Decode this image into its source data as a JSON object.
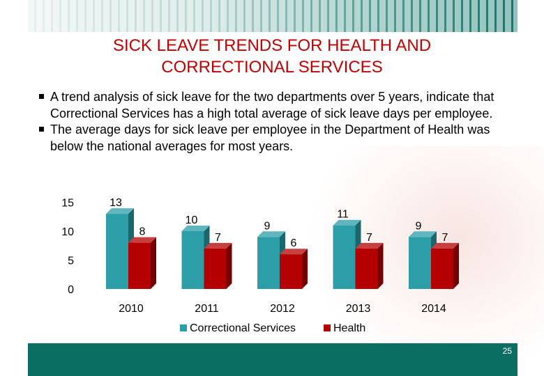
{
  "slide": {
    "title_line1": "SICK LEAVE TRENDS FOR HEALTH AND",
    "title_line2": "CORRECTIONAL SERVICES",
    "bullets": [
      "A trend analysis of sick leave for the two departments over 5 years, indicate that Correctional Services has a high total average of sick leave days per employee.",
      "The average days for sick leave per employee in the Department of Health was below the national averages for most years."
    ],
    "page_number": "25"
  },
  "colors": {
    "title": "#c00000",
    "footer": "#0b6e62",
    "series_corr": "#2b9ea8",
    "series_health": "#b40000"
  },
  "chart_data": {
    "type": "bar",
    "categories": [
      "2010",
      "2011",
      "2012",
      "2013",
      "2014"
    ],
    "series": [
      {
        "name": "Correctional Services",
        "values": [
          13,
          10,
          9,
          11,
          9
        ],
        "color": "#2b9ea8"
      },
      {
        "name": "Health",
        "values": [
          8,
          7,
          6,
          7,
          7
        ],
        "color": "#b40000"
      }
    ],
    "ylim": [
      0,
      15
    ],
    "yticks": [
      0,
      5,
      10,
      15
    ],
    "grid": false,
    "legend": "bottom",
    "style": "3d"
  }
}
